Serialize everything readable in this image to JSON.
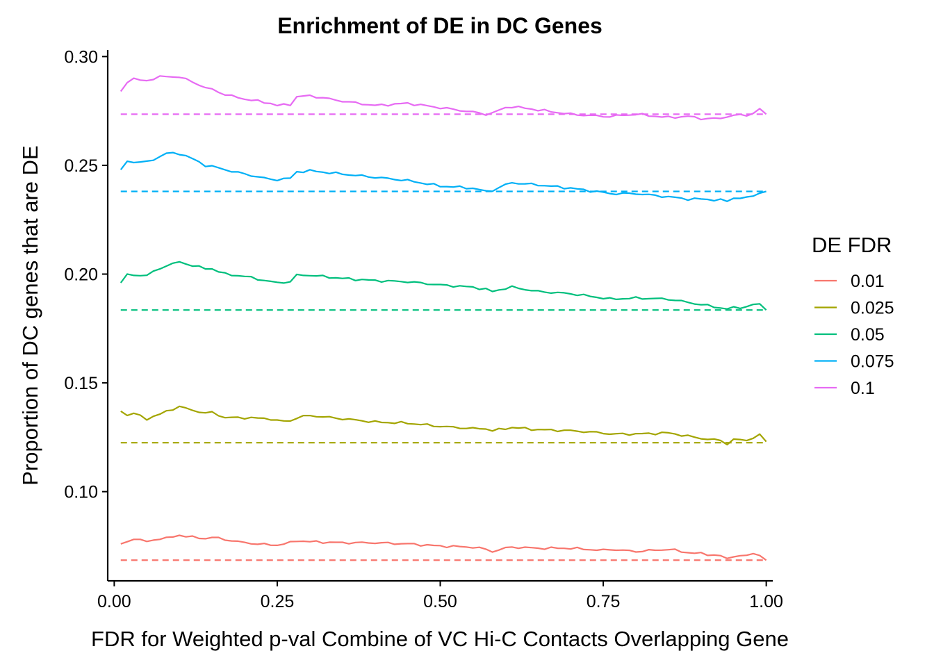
{
  "chart_data": {
    "type": "line",
    "title": "Enrichment of DE in DC Genes",
    "xlabel": "FDR for Weighted p-val Combine of VC Hi-C Contacts Overlapping Gene",
    "ylabel": "Proportion of DC genes that are DE",
    "xlim": [
      -0.01,
      1.01
    ],
    "ylim": [
      0.059,
      0.303
    ],
    "x_ticks": [
      0,
      0.25,
      0.5,
      0.75,
      1
    ],
    "x_tick_labels": [
      "0.00",
      "0.25",
      "0.50",
      "0.75",
      "1.00"
    ],
    "y_ticks": [
      0.1,
      0.15,
      0.2,
      0.25,
      0.3
    ],
    "y_tick_labels": [
      "0.10",
      "0.15",
      "0.20",
      "0.25",
      "0.30"
    ],
    "grid": false,
    "legend": {
      "title": "DE FDR",
      "position": "right"
    },
    "x_knots": [
      0.01,
      0.02,
      0.03,
      0.05,
      0.07,
      0.08,
      0.1,
      0.12,
      0.14,
      0.15,
      0.17,
      0.2,
      0.24,
      0.25,
      0.27,
      0.28,
      0.3,
      0.35,
      0.4,
      0.45,
      0.5,
      0.55,
      0.57,
      0.58,
      0.6,
      0.61,
      0.65,
      0.7,
      0.75,
      0.76,
      0.8,
      0.85,
      0.88,
      0.9,
      0.93,
      0.94,
      0.95,
      0.97,
      0.98,
      0.99,
      1.0
    ],
    "series": [
      {
        "name": "0.01",
        "color": "#F8766D",
        "baseline": 0.0685,
        "knots": [
          0.076,
          0.077,
          0.0785,
          0.077,
          0.0785,
          0.0785,
          0.08,
          0.079,
          0.0785,
          0.079,
          0.078,
          0.0765,
          0.0755,
          0.0755,
          0.0765,
          0.0775,
          0.077,
          0.0765,
          0.0765,
          0.076,
          0.075,
          0.0745,
          0.0735,
          0.0725,
          0.074,
          0.0745,
          0.074,
          0.074,
          0.073,
          0.0735,
          0.0725,
          0.0735,
          0.072,
          0.0715,
          0.0705,
          0.069,
          0.0705,
          0.0705,
          0.0715,
          0.071,
          0.0685
        ]
      },
      {
        "name": "0.025",
        "color": "#A3A500",
        "baseline": 0.1225,
        "knots": [
          0.137,
          0.135,
          0.136,
          0.1335,
          0.1355,
          0.137,
          0.139,
          0.1375,
          0.136,
          0.1365,
          0.134,
          0.134,
          0.1335,
          0.1325,
          0.1325,
          0.134,
          0.135,
          0.1335,
          0.132,
          0.1315,
          0.13,
          0.129,
          0.129,
          0.128,
          0.129,
          0.1295,
          0.1285,
          0.128,
          0.127,
          0.1265,
          0.1265,
          0.127,
          0.1255,
          0.1245,
          0.1235,
          0.122,
          0.124,
          0.1235,
          0.125,
          0.126,
          0.123
        ]
      },
      {
        "name": "0.05",
        "color": "#00BF7D",
        "baseline": 0.1835,
        "knots": [
          0.196,
          0.1995,
          0.1995,
          0.1995,
          0.2025,
          0.204,
          0.2055,
          0.204,
          0.2025,
          0.2025,
          0.2,
          0.199,
          0.1965,
          0.196,
          0.1965,
          0.1995,
          0.1995,
          0.198,
          0.197,
          0.1965,
          0.195,
          0.194,
          0.193,
          0.192,
          0.1935,
          0.194,
          0.192,
          0.191,
          0.189,
          0.1885,
          0.189,
          0.1885,
          0.187,
          0.186,
          0.1845,
          0.184,
          0.1845,
          0.185,
          0.186,
          0.186,
          0.1835
        ]
      },
      {
        "name": "0.075",
        "color": "#00B0F6",
        "baseline": 0.238,
        "knots": [
          0.248,
          0.252,
          0.2515,
          0.2515,
          0.254,
          0.2555,
          0.2555,
          0.253,
          0.25,
          0.2495,
          0.248,
          0.246,
          0.2435,
          0.2435,
          0.244,
          0.247,
          0.2475,
          0.246,
          0.2445,
          0.243,
          0.2405,
          0.2395,
          0.238,
          0.2385,
          0.241,
          0.242,
          0.241,
          0.2395,
          0.2375,
          0.237,
          0.237,
          0.2355,
          0.2345,
          0.2345,
          0.234,
          0.2335,
          0.235,
          0.235,
          0.236,
          0.2375,
          0.238
        ]
      },
      {
        "name": "0.1",
        "color": "#E76BF3",
        "baseline": 0.2735,
        "knots": [
          0.284,
          0.2885,
          0.2895,
          0.289,
          0.2905,
          0.291,
          0.2905,
          0.2885,
          0.2855,
          0.285,
          0.2825,
          0.2805,
          0.2785,
          0.2775,
          0.278,
          0.2815,
          0.282,
          0.2795,
          0.2775,
          0.2785,
          0.2765,
          0.2745,
          0.2735,
          0.274,
          0.2765,
          0.277,
          0.2755,
          0.2735,
          0.2725,
          0.2725,
          0.2735,
          0.272,
          0.2725,
          0.2715,
          0.2715,
          0.2725,
          0.273,
          0.273,
          0.274,
          0.276,
          0.2735
        ]
      }
    ]
  }
}
